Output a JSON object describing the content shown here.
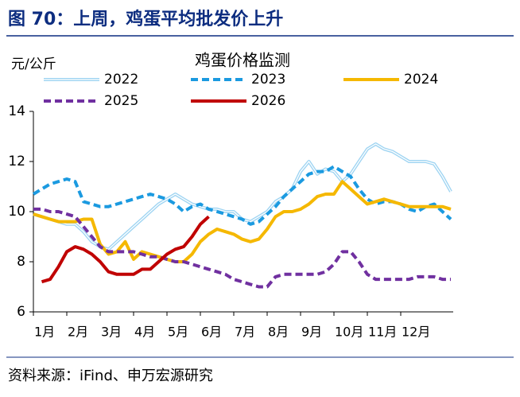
{
  "header": {
    "title": "图 70：上周，鸡蛋平均批发价上升"
  },
  "footer": {
    "source": "资料来源：iFind、申万宏源研究"
  },
  "chart_data": {
    "type": "line",
    "title": "鸡蛋价格监测",
    "y_label": "元/公斤",
    "xlim": [
      0,
      12.5
    ],
    "xticks": [
      {
        "value": 0,
        "label": "1月"
      },
      {
        "value": 1,
        "label": "2月"
      },
      {
        "value": 2,
        "label": "3月"
      },
      {
        "value": 3,
        "label": "4月"
      },
      {
        "value": 4,
        "label": "5月"
      },
      {
        "value": 5,
        "label": "6月"
      },
      {
        "value": 6,
        "label": "7月"
      },
      {
        "value": 7,
        "label": "8月"
      },
      {
        "value": 8,
        "label": "9月"
      },
      {
        "value": 9,
        "label": "10月"
      },
      {
        "value": 10,
        "label": "11月"
      },
      {
        "value": 11,
        "label": "12月"
      }
    ],
    "ylim": [
      6,
      14
    ],
    "yticks": [
      6,
      8,
      10,
      12,
      14
    ],
    "grid": false,
    "x": [
      0,
      0.25,
      0.5,
      0.75,
      1,
      1.25,
      1.5,
      1.75,
      2,
      2.25,
      2.5,
      2.75,
      3,
      3.25,
      3.5,
      3.75,
      4,
      4.25,
      4.5,
      4.75,
      5,
      5.25,
      5.5,
      5.75,
      6,
      6.25,
      6.5,
      6.75,
      7,
      7.25,
      7.5,
      7.75,
      8,
      8.25,
      8.5,
      8.75,
      9,
      9.25,
      9.5,
      9.75,
      10,
      10.25,
      10.5,
      10.75,
      11,
      11.25,
      11.5,
      11.75,
      12,
      12.25,
      12.5
    ],
    "series": [
      {
        "name": "2022",
        "color": "#9ed4f2",
        "style": "double",
        "values": [
          9.9,
          9.8,
          9.7,
          9.6,
          9.5,
          9.5,
          9.2,
          8.8,
          8.6,
          8.5,
          8.8,
          9.1,
          9.4,
          9.7,
          10.0,
          10.3,
          10.5,
          10.7,
          10.5,
          10.3,
          10.2,
          10.1,
          10.1,
          10.0,
          10.0,
          9.7,
          9.6,
          9.8,
          10.0,
          10.4,
          10.6,
          10.9,
          11.6,
          12.0,
          11.5,
          11.7,
          11.6,
          11.2,
          11.5,
          12.0,
          12.5,
          12.7,
          12.5,
          12.4,
          12.2,
          12.0,
          12.0,
          12.0,
          11.9,
          11.4,
          10.8
        ]
      },
      {
        "name": "2023",
        "color": "#1b9ae0",
        "style": "dashed",
        "values": [
          10.7,
          10.9,
          11.1,
          11.2,
          11.3,
          11.2,
          10.4,
          10.3,
          10.2,
          10.2,
          10.3,
          10.4,
          10.5,
          10.6,
          10.7,
          10.6,
          10.5,
          10.3,
          10.0,
          10.2,
          10.3,
          10.1,
          10.0,
          9.9,
          9.8,
          9.7,
          9.5,
          9.6,
          9.9,
          10.2,
          10.6,
          10.9,
          11.2,
          11.5,
          11.6,
          11.6,
          11.8,
          11.6,
          11.4,
          10.9,
          10.5,
          10.3,
          10.4,
          10.4,
          10.3,
          10.1,
          10.0,
          10.2,
          10.3,
          10.0,
          9.7
        ]
      },
      {
        "name": "2024",
        "color": "#f5b800",
        "style": "solid",
        "values": [
          9.9,
          9.8,
          9.7,
          9.6,
          9.6,
          9.6,
          9.7,
          9.7,
          8.7,
          8.3,
          8.4,
          8.8,
          8.1,
          8.4,
          8.3,
          8.2,
          8.1,
          8.0,
          8.0,
          8.3,
          8.8,
          9.1,
          9.3,
          9.2,
          9.1,
          8.9,
          8.8,
          8.9,
          9.3,
          9.8,
          10.0,
          10.0,
          10.1,
          10.3,
          10.6,
          10.7,
          10.7,
          11.2,
          10.9,
          10.6,
          10.3,
          10.4,
          10.5,
          10.4,
          10.3,
          10.2,
          10.2,
          10.2,
          10.2,
          10.2,
          10.1
        ]
      },
      {
        "name": "2025",
        "color": "#7030a0",
        "style": "dashed",
        "values": [
          10.1,
          10.1,
          10.0,
          10.0,
          9.9,
          9.8,
          9.4,
          9.0,
          8.6,
          8.4,
          8.4,
          8.4,
          8.4,
          8.3,
          8.2,
          8.2,
          8.1,
          8.0,
          8.0,
          7.9,
          7.8,
          7.7,
          7.6,
          7.5,
          7.3,
          7.2,
          7.1,
          7.0,
          7.0,
          7.4,
          7.5,
          7.5,
          7.5,
          7.5,
          7.5,
          7.6,
          7.9,
          8.4,
          8.4,
          8.0,
          7.5,
          7.3,
          7.3,
          7.3,
          7.3,
          7.3,
          7.4,
          7.4,
          7.4,
          7.3,
          7.3
        ]
      },
      {
        "name": "2026",
        "color": "#c00000",
        "style": "solid",
        "values": [
          null,
          7.2,
          7.3,
          7.8,
          8.4,
          8.6,
          8.5,
          8.3,
          8.0,
          7.6,
          7.5,
          7.5,
          7.5,
          7.7,
          7.7,
          8.0,
          8.3,
          8.5,
          8.6,
          9.0,
          9.5,
          9.8,
          null,
          null,
          null,
          null,
          null,
          null,
          null,
          null,
          null,
          null,
          null,
          null,
          null,
          null,
          null,
          null,
          null,
          null,
          null,
          null,
          null,
          null,
          null,
          null,
          null,
          null,
          null,
          null,
          null
        ]
      }
    ]
  }
}
